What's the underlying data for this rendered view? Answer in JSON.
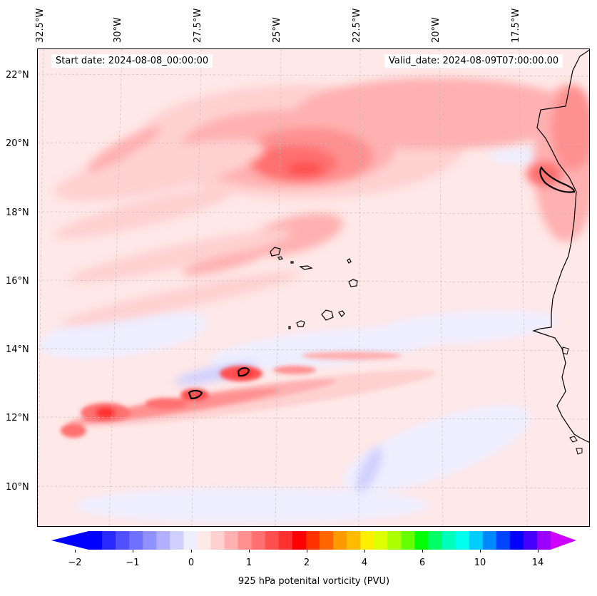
{
  "header": {
    "start_date": "Start date: 2024-08-08_00:00:00",
    "valid_date": "Valid_date: 2024-08-09T07:00:00.00"
  },
  "axes": {
    "longitude_labels": [
      "32.5°W",
      "30°W",
      "27.5°W",
      "25°W",
      "22.5°W",
      "20°W",
      "17.5°W"
    ],
    "latitude_labels": [
      "22°N",
      "20°N",
      "18°N",
      "16°N",
      "14°N",
      "12°N",
      "10°N"
    ]
  },
  "colorbar": {
    "label": "925 hPa potenital vorticity (PVU)",
    "tick_labels": [
      "−2",
      "−1",
      "0",
      "1",
      "2",
      "4",
      "6",
      "10",
      "14"
    ],
    "colors": [
      "#0000ff",
      "#2a2aff",
      "#5050ff",
      "#7070ff",
      "#9090ff",
      "#b0b0ff",
      "#d0d0ff",
      "#eeeeff",
      "#ffe8e8",
      "#ffd0d0",
      "#ffb0b0",
      "#ff9090",
      "#ff7070",
      "#ff5050",
      "#ff3030",
      "#ff0000",
      "#ff3300",
      "#ff6600",
      "#ff9900",
      "#ffbb00",
      "#ffee00",
      "#ddff00",
      "#aaff00",
      "#66ff00",
      "#00ff00",
      "#00ff66",
      "#00ffbb",
      "#00ffee",
      "#00ccff",
      "#0088ff",
      "#0044ff",
      "#0000ff",
      "#4400ff",
      "#9900ff"
    ],
    "extend_low": "#0000ff",
    "extend_high": "#cc00ff"
  }
}
